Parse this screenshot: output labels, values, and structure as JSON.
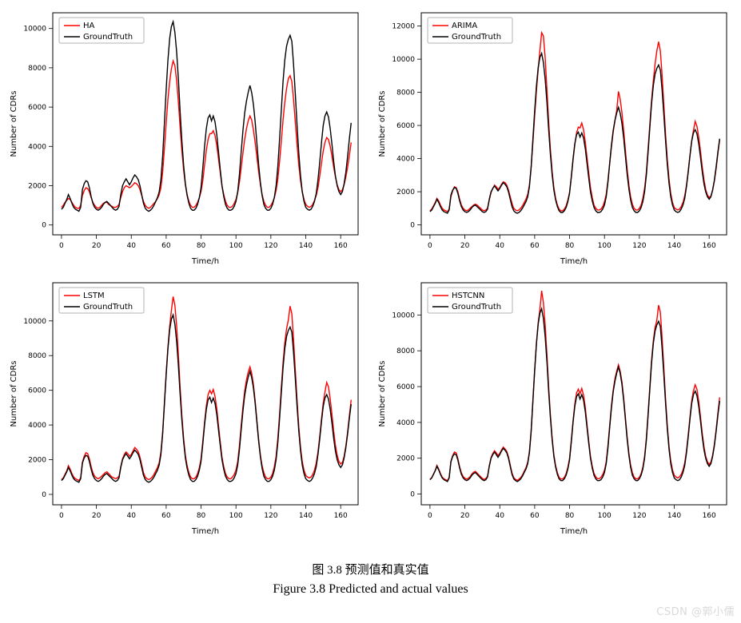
{
  "caption_cn": "图 3.8 预测值和真实值",
  "caption_en": "Figure 3.8 Predicted and actual values",
  "watermark": "CSDN @郭小儒",
  "chart_style": {
    "pred_color": "#ff0000",
    "truth_color": "#000000",
    "line_width": 1.4,
    "border_color": "#000000",
    "tick_color": "#000000",
    "label_fontsize": 10,
    "tick_fontsize": 9,
    "legend_fontsize": 10,
    "legend_border": "#b3b3b3",
    "legend_bg": "#ffffff",
    "background": "#ffffff"
  },
  "x_axis": {
    "label": "Time/h",
    "lim": [
      -5,
      170
    ],
    "ticks": [
      0,
      20,
      40,
      60,
      80,
      100,
      120,
      140,
      160
    ]
  },
  "ground_truth_label": "GroundTruth",
  "ground_truth_series": [
    800,
    900,
    1100,
    1300,
    1550,
    1350,
    1100,
    900,
    800,
    750,
    700,
    900,
    1800,
    2100,
    2250,
    2200,
    1900,
    1450,
    1100,
    900,
    800,
    750,
    800,
    900,
    1050,
    1150,
    1200,
    1100,
    1000,
    900,
    800,
    750,
    800,
    950,
    1550,
    2000,
    2200,
    2350,
    2200,
    2050,
    2200,
    2400,
    2550,
    2450,
    2300,
    2000,
    1550,
    1100,
    850,
    750,
    700,
    750,
    850,
    1000,
    1200,
    1400,
    1700,
    2300,
    3500,
    5200,
    6900,
    8400,
    9500,
    10100,
    10350,
    9800,
    8800,
    7400,
    5800,
    4300,
    3050,
    2100,
    1500,
    1100,
    850,
    750,
    750,
    850,
    1050,
    1400,
    1900,
    2900,
    4000,
    4900,
    5450,
    5600,
    5300,
    5550,
    5250,
    4600,
    3700,
    2800,
    2000,
    1450,
    1050,
    850,
    750,
    750,
    800,
    950,
    1200,
    1700,
    2600,
    3700,
    4800,
    5700,
    6300,
    6750,
    7100,
    6750,
    6150,
    5250,
    4150,
    3050,
    2150,
    1500,
    1050,
    850,
    750,
    750,
    850,
    1050,
    1400,
    2000,
    3000,
    4400,
    5900,
    7300,
    8400,
    9100,
    9450,
    9650,
    9350,
    8200,
    6700,
    5100,
    3650,
    2500,
    1700,
    1200,
    900,
    800,
    750,
    800,
    950,
    1200,
    1600,
    2300,
    3200,
    4200,
    5050,
    5550,
    5750,
    5500,
    4900,
    4100,
    3250,
    2500,
    2000,
    1700,
    1550,
    1700,
    2100,
    2700,
    3500,
    4400,
    5200
  ],
  "panels": [
    {
      "legend": "HA",
      "y": {
        "label": "Number of CDRs",
        "lim": [
          -500,
          10800
        ],
        "ticks": [
          0,
          2000,
          4000,
          6000,
          8000,
          10000
        ]
      },
      "pred": [
        900,
        1000,
        1150,
        1250,
        1350,
        1300,
        1150,
        1000,
        900,
        850,
        850,
        1000,
        1500,
        1750,
        1900,
        1850,
        1700,
        1400,
        1150,
        1000,
        900,
        850,
        900,
        1000,
        1100,
        1150,
        1150,
        1050,
        1000,
        950,
        900,
        900,
        950,
        1050,
        1400,
        1700,
        1900,
        2000,
        1950,
        1900,
        1950,
        2050,
        2150,
        2100,
        2000,
        1800,
        1500,
        1200,
        1000,
        900,
        850,
        900,
        1000,
        1100,
        1200,
        1350,
        1550,
        1900,
        2700,
        3900,
        5200,
        6400,
        7300,
        7950,
        8350,
        8100,
        7350,
        6250,
        5000,
        3800,
        2800,
        2050,
        1550,
        1200,
        1000,
        900,
        900,
        1000,
        1150,
        1400,
        1700,
        2250,
        3050,
        3800,
        4350,
        4650,
        4650,
        4800,
        4550,
        4050,
        3350,
        2650,
        2000,
        1550,
        1200,
        1000,
        900,
        900,
        950,
        1100,
        1300,
        1650,
        2200,
        2900,
        3650,
        4350,
        4900,
        5300,
        5550,
        5350,
        4850,
        4200,
        3450,
        2700,
        2050,
        1550,
        1200,
        1000,
        900,
        900,
        1000,
        1150,
        1400,
        1750,
        2350,
        3250,
        4300,
        5350,
        6250,
        6950,
        7450,
        7600,
        7300,
        6400,
        5250,
        4100,
        3050,
        2250,
        1700,
        1300,
        1050,
        950,
        900,
        950,
        1050,
        1250,
        1500,
        1900,
        2500,
        3150,
        3750,
        4200,
        4450,
        4350,
        4000,
        3500,
        2950,
        2450,
        2050,
        1800,
        1700,
        1800,
        2050,
        2450,
        2950,
        3550,
        4200
      ]
    },
    {
      "legend": "ARIMA",
      "y": {
        "label": "Number of CDRs",
        "lim": [
          -600,
          12800
        ],
        "ticks": [
          0,
          2000,
          4000,
          6000,
          8000,
          10000,
          12000
        ]
      },
      "pred": [
        850,
        950,
        1150,
        1350,
        1600,
        1450,
        1200,
        1000,
        900,
        850,
        800,
        950,
        1700,
        2050,
        2300,
        2250,
        2000,
        1550,
        1200,
        1000,
        900,
        850,
        900,
        1000,
        1100,
        1200,
        1250,
        1200,
        1100,
        1000,
        900,
        850,
        900,
        1000,
        1500,
        1950,
        2200,
        2400,
        2300,
        2150,
        2250,
        2450,
        2600,
        2550,
        2400,
        2100,
        1700,
        1300,
        1000,
        900,
        850,
        900,
        1000,
        1150,
        1350,
        1550,
        1850,
        2400,
        3500,
        5000,
        6600,
        8100,
        9400,
        10500,
        11600,
        11400,
        10100,
        8200,
        6300,
        4600,
        3250,
        2250,
        1600,
        1200,
        950,
        850,
        850,
        950,
        1150,
        1500,
        1950,
        2850,
        3900,
        4850,
        5550,
        5900,
        5850,
        6150,
        5750,
        5000,
        4050,
        3100,
        2250,
        1650,
        1200,
        1000,
        900,
        900,
        950,
        1100,
        1400,
        1850,
        2700,
        3700,
        4700,
        5600,
        6300,
        6900,
        8050,
        7600,
        6800,
        5700,
        4500,
        3350,
        2400,
        1700,
        1250,
        1000,
        900,
        900,
        1000,
        1200,
        1600,
        2200,
        3200,
        4600,
        6100,
        7500,
        8700,
        9700,
        10500,
        11050,
        10500,
        9100,
        7300,
        5500,
        3950,
        2750,
        1900,
        1350,
        1050,
        950,
        900,
        950,
        1100,
        1350,
        1750,
        2400,
        3250,
        4200,
        5050,
        5700,
        6250,
        5950,
        5300,
        4450,
        3550,
        2750,
        2150,
        1800,
        1650,
        1750,
        2100,
        2650,
        3400,
        4300,
        5150
      ]
    },
    {
      "legend": "LSTM",
      "y": {
        "label": "Number of CDRs",
        "lim": [
          -600,
          12200
        ],
        "ticks": [
          0,
          2000,
          4000,
          6000,
          8000,
          10000
        ]
      },
      "pred": [
        850,
        950,
        1150,
        1350,
        1650,
        1450,
        1200,
        1000,
        900,
        850,
        800,
        950,
        1850,
        2200,
        2400,
        2350,
        2050,
        1600,
        1250,
        1050,
        950,
        900,
        950,
        1050,
        1150,
        1250,
        1300,
        1200,
        1100,
        1000,
        950,
        900,
        950,
        1050,
        1600,
        2050,
        2300,
        2450,
        2350,
        2200,
        2300,
        2500,
        2700,
        2600,
        2450,
        2150,
        1700,
        1250,
        1000,
        900,
        850,
        900,
        1000,
        1150,
        1350,
        1550,
        1850,
        2450,
        3600,
        5300,
        7000,
        8500,
        9700,
        10600,
        11400,
        10900,
        9700,
        8000,
        6200,
        4550,
        3250,
        2250,
        1650,
        1250,
        1000,
        900,
        900,
        1000,
        1200,
        1550,
        2050,
        3050,
        4150,
        5100,
        5750,
        6000,
        5800,
        6050,
        5650,
        4950,
        3950,
        3000,
        2150,
        1600,
        1200,
        1000,
        900,
        900,
        1000,
        1150,
        1400,
        1900,
        2850,
        3950,
        5050,
        5950,
        6600,
        7050,
        7350,
        7000,
        6350,
        5400,
        4250,
        3150,
        2250,
        1650,
        1250,
        1000,
        900,
        900,
        1000,
        1200,
        1600,
        2200,
        3250,
        4650,
        6200,
        7600,
        8750,
        9550,
        10050,
        10850,
        10400,
        8950,
        7200,
        5450,
        3900,
        2700,
        1900,
        1400,
        1100,
        1000,
        950,
        1000,
        1150,
        1400,
        1800,
        2450,
        3350,
        4350,
        5250,
        5900,
        6450,
        6200,
        5500,
        4600,
        3650,
        2850,
        2250,
        1900,
        1750,
        1850,
        2200,
        2800,
        3600,
        4550,
        5450
      ]
    },
    {
      "legend": "HSTCNN",
      "y": {
        "label": "Number of CDRs",
        "lim": [
          -600,
          11800
        ],
        "ticks": [
          0,
          2000,
          4000,
          6000,
          8000,
          10000
        ]
      },
      "pred": [
        820,
        920,
        1120,
        1320,
        1600,
        1400,
        1150,
        950,
        850,
        800,
        750,
        920,
        1820,
        2150,
        2350,
        2300,
        1980,
        1520,
        1180,
        980,
        880,
        830,
        880,
        970,
        1120,
        1220,
        1270,
        1170,
        1070,
        970,
        870,
        820,
        870,
        1000,
        1580,
        2030,
        2270,
        2420,
        2300,
        2150,
        2270,
        2460,
        2620,
        2520,
        2380,
        2080,
        1630,
        1180,
        920,
        820,
        770,
        830,
        920,
        1070,
        1270,
        1470,
        1780,
        2370,
        3570,
        5270,
        6960,
        8430,
        9580,
        10300,
        11350,
        10700,
        9450,
        7800,
        6050,
        4460,
        3170,
        2190,
        1590,
        1190,
        940,
        840,
        840,
        940,
        1140,
        1490,
        1990,
        2990,
        4090,
        5030,
        5650,
        5860,
        5600,
        5900,
        5530,
        4850,
        3860,
        2930,
        2110,
        1560,
        1160,
        960,
        860,
        860,
        940,
        1090,
        1330,
        1810,
        2740,
        3830,
        4920,
        5810,
        6440,
        6870,
        7220,
        6870,
        6290,
        5380,
        4280,
        3180,
        2260,
        1630,
        1190,
        950,
        850,
        850,
        940,
        1140,
        1500,
        2110,
        3130,
        4520,
        6030,
        7450,
        8560,
        9300,
        9700,
        10550,
        10150,
        8800,
        7100,
        5350,
        3830,
        2650,
        1860,
        1350,
        1060,
        950,
        900,
        960,
        1100,
        1340,
        1740,
        2420,
        3320,
        4320,
        5200,
        5780,
        6100,
        5850,
        5180,
        4330,
        3430,
        2680,
        2120,
        1800,
        1660,
        1790,
        2170,
        2770,
        3590,
        4540,
        5400
      ]
    }
  ]
}
